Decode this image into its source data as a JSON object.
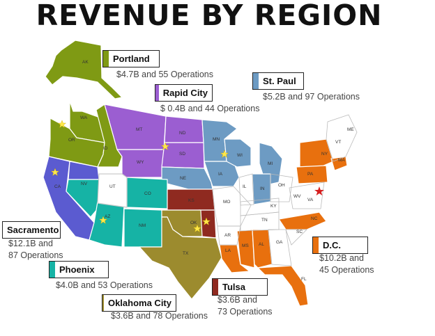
{
  "title": "REVENUE BY REGION",
  "regions": [
    {
      "name": "Portland",
      "color": "#7f9a14",
      "detail": "$4.7B and 55 Operations"
    },
    {
      "name": "Rapid City",
      "color": "#9b5ed1",
      "detail": "$ 0.4B and 44 Operations"
    },
    {
      "name": "St. Paul",
      "color": "#6d9bc3",
      "detail": "$5.2B and 97 Operations"
    },
    {
      "name": "Sacramento",
      "color": "#5b5bd0",
      "detail1": "$12.1B and",
      "detail2": "87 Operations"
    },
    {
      "name": "Phoenix",
      "color": "#16b3a5",
      "detail": "$4.0B and 53 Operations"
    },
    {
      "name": "Oklahoma City",
      "color": "#9c8b2e",
      "detail": "$3.6B and 78 Operations"
    },
    {
      "name": "Tulsa",
      "color": "#8f2a20",
      "detail1": "$3.6B and",
      "detail2": "73 Operations"
    },
    {
      "name": "D.C.",
      "color": "#e8700e",
      "detail1": "$10.2B and",
      "detail2": "45 Operations"
    }
  ],
  "states": {
    "AK": "AK",
    "WA": "WA",
    "OR": "OR",
    "ID": "ID",
    "MT": "MT",
    "WY": "WY",
    "ND": "ND",
    "SD": "SD",
    "NE": "NE",
    "MN": "MN",
    "WI": "WI",
    "IA": "IA",
    "MI": "MI",
    "IN": "IN",
    "CA": "CA",
    "NV": "NV",
    "AZ": "AZ",
    "UT": "UT",
    "CO": "CO",
    "NM": "NM",
    "KS": "KS",
    "OK": "OK",
    "TX": "TX",
    "MO": "MO",
    "AR": "AR",
    "LA": "LA",
    "MS": "MS",
    "AL": "AL",
    "GA": "GA",
    "FL": "FL",
    "SC": "SC",
    "NC": "NC",
    "TN": "TN",
    "KY": "KY",
    "IL": "IL",
    "OH": "OH",
    "WV": "WV",
    "VA": "VA",
    "PA": "PA",
    "NY": "NY",
    "VT": "VT",
    "ME": "ME",
    "MA": "MA"
  }
}
